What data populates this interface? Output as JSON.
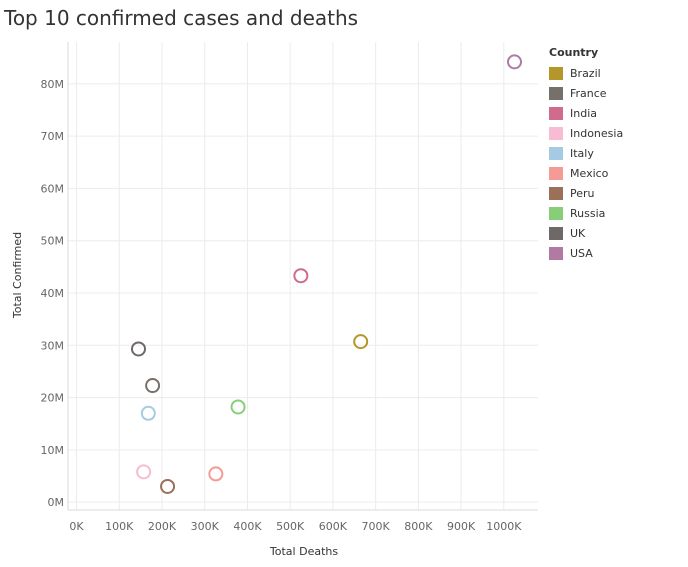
{
  "chart_data": {
    "type": "scatter",
    "title": "Top 10 confirmed cases and deaths",
    "xlabel": "Total Deaths",
    "ylabel": "Total Confirmed",
    "xlim": [
      -20000,
      1080000
    ],
    "ylim": [
      -1500000,
      88000000
    ],
    "x_ticks": [
      0,
      100000,
      200000,
      300000,
      400000,
      500000,
      600000,
      700000,
      800000,
      900000,
      1000000
    ],
    "x_tick_labels": [
      "0K",
      "100K",
      "200K",
      "300K",
      "400K",
      "500K",
      "600K",
      "700K",
      "800K",
      "900K",
      "1000K"
    ],
    "y_ticks": [
      0,
      10000000,
      20000000,
      30000000,
      40000000,
      50000000,
      60000000,
      70000000,
      80000000
    ],
    "y_tick_labels": [
      "0M",
      "10M",
      "20M",
      "30M",
      "40M",
      "50M",
      "60M",
      "70M",
      "80M"
    ],
    "grid": true,
    "legend_title": "Country",
    "legend_position": "right",
    "series": [
      {
        "name": "Brazil",
        "color": "#b5962a",
        "x": 665000,
        "y": 30700000
      },
      {
        "name": "France",
        "color": "#76706b",
        "x": 178000,
        "y": 22300000
      },
      {
        "name": "India",
        "color": "#d16b8e",
        "x": 525000,
        "y": 43300000
      },
      {
        "name": "Indonesia",
        "color": "#f7bcd3",
        "x": 157000,
        "y": 5800000
      },
      {
        "name": "Italy",
        "color": "#a4cbe3",
        "x": 168000,
        "y": 17000000
      },
      {
        "name": "Mexico",
        "color": "#f59a96",
        "x": 326000,
        "y": 5400000
      },
      {
        "name": "Peru",
        "color": "#9b7059",
        "x": 213000,
        "y": 3000000
      },
      {
        "name": "Russia",
        "color": "#86cf78",
        "x": 378000,
        "y": 18200000
      },
      {
        "name": "UK",
        "color": "#6e6866",
        "x": 145000,
        "y": 29300000
      },
      {
        "name": "USA",
        "color": "#b07aa2",
        "x": 1025000,
        "y": 84200000
      }
    ]
  }
}
